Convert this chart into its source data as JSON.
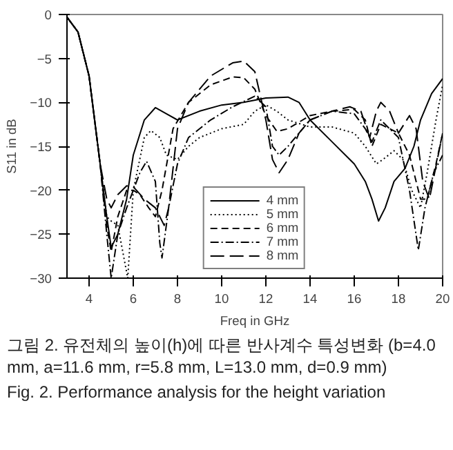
{
  "chart_data": {
    "type": "line",
    "xlabel": "Freq in GHz",
    "ylabel": "S11 in dB",
    "xlim": [
      3,
      20
    ],
    "ylim": [
      -30,
      0
    ],
    "xticks": [
      4,
      6,
      8,
      10,
      12,
      14,
      16,
      18,
      20
    ],
    "yticks": [
      -30,
      -25,
      -20,
      -15,
      -10,
      -5,
      0
    ],
    "grid": false,
    "legend": "bottom",
    "marker": "none",
    "series": [
      {
        "name": "4 mm",
        "color": "#000000",
        "line_style": "solid",
        "x": [
          3,
          3.5,
          4,
          4.5,
          4.8,
          5,
          5.3,
          5.7,
          6,
          6.5,
          7,
          7.5,
          8,
          9,
          10,
          11,
          12,
          13,
          13.5,
          14,
          15,
          16,
          16.5,
          16.8,
          17.1,
          17.4,
          17.8,
          18.3,
          18.7,
          19,
          19.5,
          20
        ],
        "values": [
          -0.3,
          -2,
          -7,
          -17,
          -23,
          -26.5,
          -25,
          -21,
          -16,
          -12,
          -10.6,
          -11.3,
          -12,
          -11,
          -10.3,
          -10,
          -9.5,
          -9.4,
          -10,
          -12,
          -14.5,
          -17,
          -19,
          -21,
          -23.5,
          -22,
          -19,
          -17.5,
          -15,
          -12,
          -9,
          -7.3
        ]
      },
      {
        "name": "5 mm",
        "color": "#000000",
        "line_style": "dotted",
        "x": [
          3,
          3.5,
          4,
          4.5,
          4.8,
          5,
          5.3,
          5.6,
          5.75,
          6,
          6.5,
          6.8,
          7.2,
          7.5,
          8,
          8.5,
          9,
          10,
          11,
          11.5,
          12,
          12.5,
          13,
          14,
          15,
          16,
          16.5,
          17,
          17.3,
          17.8,
          18.2,
          18.6,
          19,
          19.3,
          19.7,
          20
        ],
        "values": [
          -0.3,
          -2,
          -7,
          -17,
          -23,
          -23.5,
          -24,
          -28,
          -30,
          -20,
          -14,
          -13.2,
          -14,
          -16,
          -16.5,
          -15,
          -14,
          -13,
          -12.5,
          -11,
          -10.3,
          -11,
          -12,
          -12.8,
          -12.8,
          -13.5,
          -15,
          -17,
          -16.5,
          -15.5,
          -16.5,
          -20,
          -22,
          -18,
          -12,
          -8
        ]
      },
      {
        "name": "6 mm",
        "color": "#000000",
        "line_style": "dashed",
        "x": [
          3,
          3.5,
          4,
          4.5,
          4.8,
          5,
          5.3,
          5.7,
          6,
          6.3,
          6.7,
          7,
          7.3,
          7.8,
          8.5,
          9.5,
          10.5,
          11,
          11.5,
          12,
          12.5,
          13,
          14,
          15,
          16,
          16.5,
          16.8,
          17.2,
          17.6,
          18,
          18.5,
          19,
          19.3,
          19.7,
          20
        ],
        "values": [
          -0.3,
          -2,
          -7,
          -17,
          -24,
          -27,
          -23,
          -20,
          -20,
          -20.5,
          -22,
          -23,
          -20,
          -13,
          -10,
          -8,
          -7.1,
          -7.2,
          -8.5,
          -11.5,
          -13.3,
          -13,
          -11.5,
          -11,
          -10.8,
          -12,
          -15,
          -12.5,
          -13,
          -13.5,
          -16,
          -21,
          -21,
          -17,
          -13.5
        ]
      },
      {
        "name": "7 mm",
        "color": "#000000",
        "line_style": "dashdot",
        "x": [
          3,
          3.5,
          4,
          4.5,
          4.8,
          5,
          5.3,
          5.7,
          6,
          6.3,
          6.6,
          7,
          7.2,
          7.3,
          7.6,
          8,
          8.5,
          9.5,
          10.5,
          11.5,
          12,
          12.3,
          12.6,
          13,
          14,
          15,
          16,
          16.5,
          16.8,
          17.2,
          17.6,
          18,
          18.5,
          18.9,
          19.2,
          19.6,
          20
        ],
        "values": [
          -0.3,
          -2,
          -7,
          -17,
          -25,
          -30,
          -25,
          -22,
          -20,
          -18,
          -16.7,
          -19,
          -26,
          -27.7,
          -22,
          -17,
          -14,
          -12,
          -10.5,
          -9.3,
          -10.5,
          -15,
          -16,
          -15,
          -12,
          -11,
          -11.3,
          -13,
          -14.5,
          -12,
          -13,
          -14,
          -20,
          -26.8,
          -22,
          -18,
          -16
        ]
      },
      {
        "name": "8 mm",
        "color": "#000000",
        "line_style": "longdash",
        "x": [
          3,
          3.5,
          4,
          4.5,
          4.8,
          5,
          5.3,
          5.7,
          6,
          6.5,
          7,
          7.4,
          7.6,
          8,
          8.5,
          9.5,
          10.5,
          11,
          11.5,
          12,
          12.3,
          12.6,
          13,
          13.5,
          14,
          15,
          15.8,
          16.3,
          16.7,
          17,
          17.2,
          17.6,
          18,
          18.5,
          18.8,
          19.1,
          19.4,
          19.8,
          20
        ],
        "values": [
          -0.3,
          -2,
          -7,
          -17,
          -21,
          -22,
          -20.5,
          -19.5,
          -19.6,
          -21,
          -22,
          -24,
          -22,
          -13,
          -10,
          -7,
          -5.5,
          -5.3,
          -6.5,
          -12,
          -16.5,
          -18,
          -16.5,
          -13.5,
          -12,
          -11,
          -10.5,
          -11,
          -14,
          -11,
          -10,
          -11,
          -13.5,
          -11.5,
          -13,
          -19,
          -21,
          -16,
          -13.5
        ]
      }
    ],
    "annotations": [
      "그림 2.  유전체의 높이(h)에 따른 반사계수 특성변화 (b=4.0 mm, a=11.6 mm, r=5.8 mm, L=13.0 mm, d=0.9 mm)",
      "Fig.  2.  Performance analysis for the height variation"
    ]
  }
}
